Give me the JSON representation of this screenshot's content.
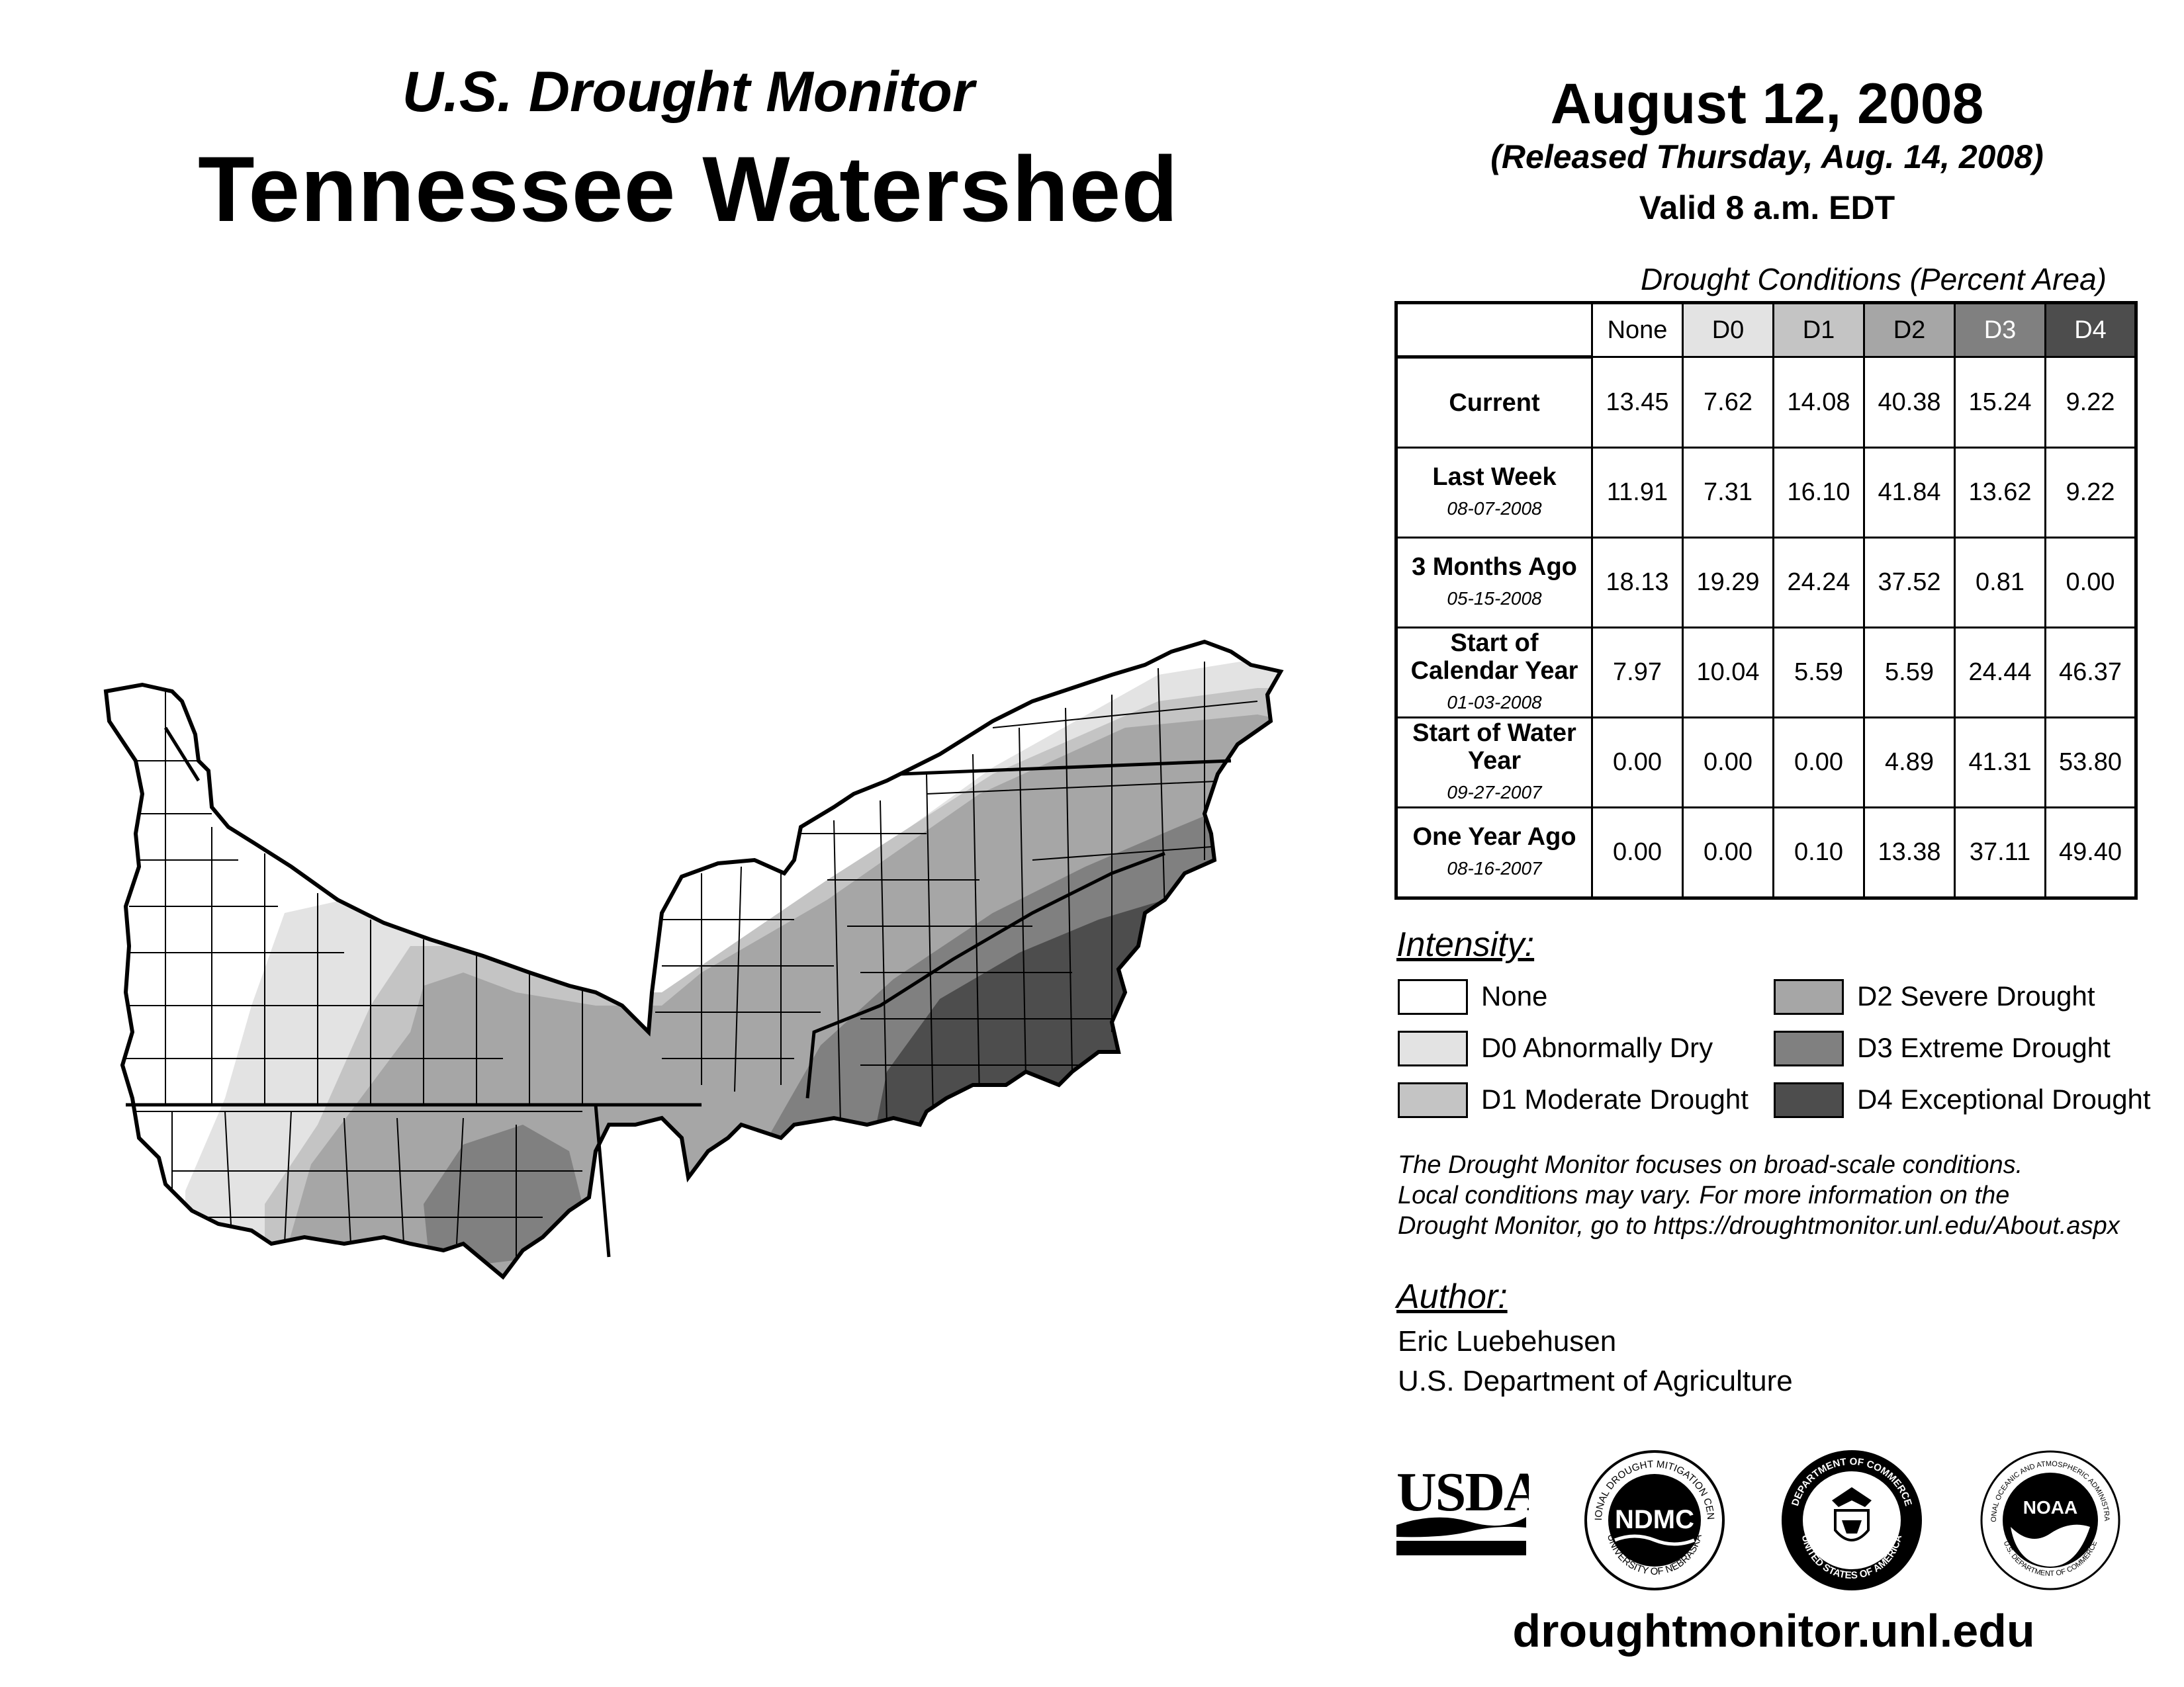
{
  "header": {
    "subtitle": "U.S. Drought Monitor",
    "title": "Tennessee Watershed",
    "date": "August 12, 2008",
    "released": "(Released Thursday, Aug. 14, 2008)",
    "valid": "Valid 8 a.m. EDT"
  },
  "table": {
    "caption": "Drought Conditions (Percent Area)",
    "columns": [
      "None",
      "D0",
      "D1",
      "D2",
      "D3",
      "D4"
    ],
    "rows": [
      {
        "label": "Current",
        "date": "",
        "values": [
          "13.45",
          "7.62",
          "14.08",
          "40.38",
          "15.24",
          "9.22"
        ]
      },
      {
        "label": "Last Week",
        "date": "08-07-2008",
        "values": [
          "11.91",
          "7.31",
          "16.10",
          "41.84",
          "13.62",
          "9.22"
        ]
      },
      {
        "label": "3 Months Ago",
        "date": "05-15-2008",
        "values": [
          "18.13",
          "19.29",
          "24.24",
          "37.52",
          "0.81",
          "0.00"
        ]
      },
      {
        "label": "Start of Calendar Year",
        "date": "01-03-2008",
        "values": [
          "7.97",
          "10.04",
          "5.59",
          "5.59",
          "24.44",
          "46.37"
        ]
      },
      {
        "label": "Start of Water Year",
        "date": "09-27-2007",
        "values": [
          "0.00",
          "0.00",
          "0.00",
          "4.89",
          "41.31",
          "53.80"
        ]
      },
      {
        "label": "One Year Ago",
        "date": "08-16-2007",
        "values": [
          "0.00",
          "0.00",
          "0.10",
          "13.38",
          "37.11",
          "49.40"
        ]
      }
    ]
  },
  "legend": {
    "heading": "Intensity:",
    "items": [
      {
        "label": "None",
        "color": "#ffffff"
      },
      {
        "label": "D0 Abnormally Dry",
        "color": "#e3e3e3"
      },
      {
        "label": "D1 Moderate Drought",
        "color": "#c4c4c4"
      },
      {
        "label": "D2 Severe Drought",
        "color": "#a6a6a6"
      },
      {
        "label": "D3 Extreme Drought",
        "color": "#808080"
      },
      {
        "label": "D4 Exceptional Drought",
        "color": "#4d4d4d"
      }
    ]
  },
  "note": {
    "line1": "The Drought Monitor focuses on broad-scale conditions.",
    "line2": "Local conditions may vary. For more information on the",
    "line3": "Drought Monitor, go to https://droughtmonitor.unl.edu/About.aspx"
  },
  "author": {
    "heading": "Author:",
    "name": "Eric Luebehusen",
    "org": "U.S. Department of Agriculture"
  },
  "logos": {
    "usda": "USDA",
    "ndmc": "NDMC",
    "ndmc_ring": "NATIONAL DROUGHT MITIGATION CENTER",
    "ndmc_ring_bottom": "UNIVERSITY OF NEBRASKA",
    "doc_ring": "DEPARTMENT OF COMMERCE",
    "doc_ring_bottom": "UNITED STATES OF AMERICA",
    "noaa": "NOAA",
    "noaa_ring": "NATIONAL OCEANIC AND ATMOSPHERIC ADMINISTRATION",
    "noaa_ring_bottom": "U.S. DEPARTMENT OF COMMERCE"
  },
  "website": "droughtmonitor.unl.edu"
}
